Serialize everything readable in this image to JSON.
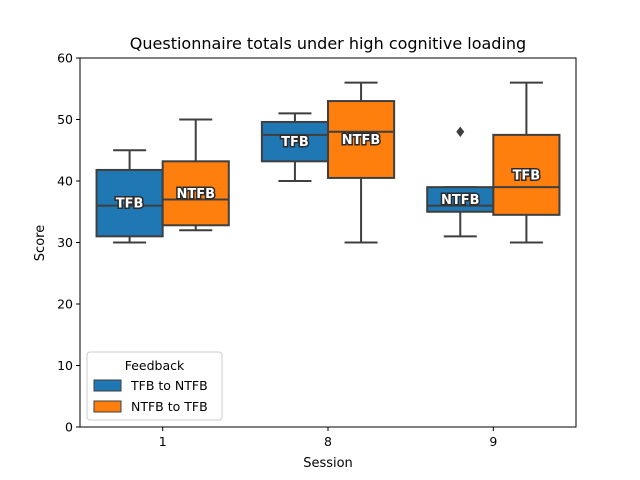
{
  "chart_data": {
    "type": "box",
    "title": "Questionnaire totals under high cognitive loading",
    "xlabel": "Session",
    "ylabel": "Score",
    "ylim": [
      0,
      60
    ],
    "yticks": [
      0,
      10,
      20,
      30,
      40,
      50,
      60
    ],
    "categories": [
      "1",
      "8",
      "9"
    ],
    "grid": false,
    "legend": {
      "title": "Feedback",
      "placement": "lower-left"
    },
    "series": [
      {
        "name": "TFB to NTFB",
        "color": "#1f77b4",
        "boxes": [
          {
            "category": "1",
            "min": 30,
            "q1": 31,
            "median": 36,
            "q3": 41.8,
            "max": 45,
            "label": "TFB",
            "outliers": []
          },
          {
            "category": "8",
            "min": 40,
            "q1": 43.2,
            "median": 47.5,
            "q3": 49.6,
            "max": 51,
            "label": "TFB",
            "outliers": []
          },
          {
            "category": "9",
            "min": 31,
            "q1": 35,
            "median": 36,
            "q3": 39,
            "max": 39,
            "label": "NTFB",
            "outliers": [
              48
            ]
          }
        ]
      },
      {
        "name": "NTFB to TFB",
        "color": "#ff7f0e",
        "boxes": [
          {
            "category": "1",
            "min": 32,
            "q1": 32.8,
            "median": 37,
            "q3": 43.2,
            "max": 50,
            "label": "NTFB",
            "outliers": []
          },
          {
            "category": "8",
            "min": 30,
            "q1": 40.5,
            "median": 48,
            "q3": 53,
            "max": 56,
            "label": "NTFB",
            "outliers": []
          },
          {
            "category": "9",
            "min": 30,
            "q1": 34.5,
            "median": 39,
            "q3": 47.5,
            "max": 56,
            "label": "TFB",
            "outliers": []
          }
        ]
      }
    ]
  }
}
